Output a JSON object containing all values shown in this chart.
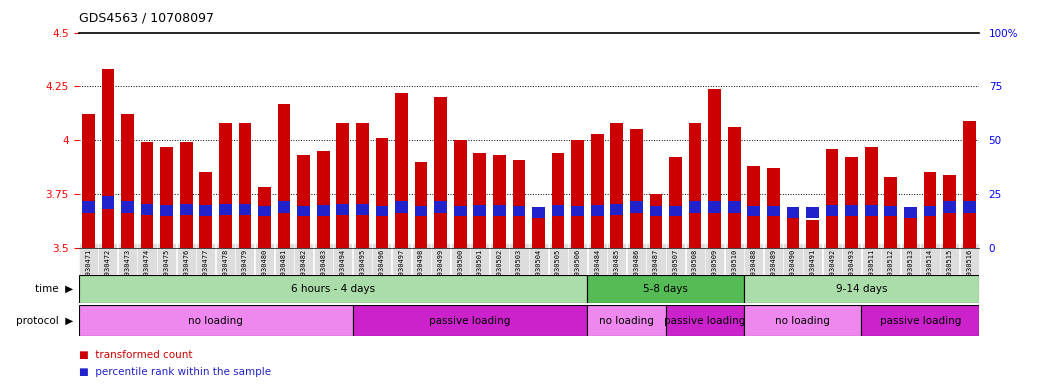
{
  "title": "GDS4563 / 10708097",
  "samples": [
    "GSM930471",
    "GSM930472",
    "GSM930473",
    "GSM930474",
    "GSM930475",
    "GSM930476",
    "GSM930477",
    "GSM930478",
    "GSM930479",
    "GSM930480",
    "GSM930481",
    "GSM930482",
    "GSM930483",
    "GSM930494",
    "GSM930495",
    "GSM930496",
    "GSM930497",
    "GSM930498",
    "GSM930499",
    "GSM930500",
    "GSM930501",
    "GSM930502",
    "GSM930503",
    "GSM930504",
    "GSM930505",
    "GSM930506",
    "GSM930484",
    "GSM930485",
    "GSM930486",
    "GSM930487",
    "GSM930507",
    "GSM930508",
    "GSM930509",
    "GSM930510",
    "GSM930488",
    "GSM930489",
    "GSM930490",
    "GSM930491",
    "GSM930492",
    "GSM930493",
    "GSM930511",
    "GSM930512",
    "GSM930513",
    "GSM930514",
    "GSM930515",
    "GSM930516"
  ],
  "red_values": [
    4.12,
    4.33,
    4.12,
    3.99,
    3.97,
    3.99,
    3.85,
    4.08,
    4.08,
    3.78,
    4.17,
    3.93,
    3.95,
    4.08,
    4.08,
    4.01,
    4.22,
    3.9,
    4.2,
    4.0,
    3.94,
    3.93,
    3.91,
    3.64,
    3.94,
    4.0,
    4.03,
    4.08,
    4.05,
    3.75,
    3.92,
    4.08,
    4.24,
    4.06,
    3.88,
    3.87,
    3.64,
    3.63,
    3.96,
    3.92,
    3.97,
    3.83,
    3.64,
    3.85,
    3.84,
    4.09
  ],
  "blue_bottoms": [
    3.66,
    3.68,
    3.66,
    3.65,
    3.648,
    3.65,
    3.648,
    3.65,
    3.65,
    3.645,
    3.66,
    3.645,
    3.648,
    3.65,
    3.65,
    3.645,
    3.66,
    3.645,
    3.66,
    3.645,
    3.648,
    3.648,
    3.645,
    3.64,
    3.648,
    3.645,
    3.648,
    3.65,
    3.66,
    3.645,
    3.645,
    3.66,
    3.66,
    3.66,
    3.645,
    3.645,
    3.64,
    3.638,
    3.648,
    3.648,
    3.648,
    3.645,
    3.64,
    3.645,
    3.66,
    3.66
  ],
  "blue_heights": [
    0.055,
    0.06,
    0.055,
    0.052,
    0.05,
    0.052,
    0.05,
    0.052,
    0.052,
    0.05,
    0.055,
    0.05,
    0.052,
    0.052,
    0.052,
    0.05,
    0.055,
    0.05,
    0.055,
    0.05,
    0.052,
    0.052,
    0.05,
    0.05,
    0.052,
    0.05,
    0.052,
    0.052,
    0.055,
    0.05,
    0.05,
    0.055,
    0.055,
    0.055,
    0.05,
    0.05,
    0.05,
    0.05,
    0.052,
    0.052,
    0.052,
    0.05,
    0.05,
    0.05,
    0.055,
    0.055
  ],
  "ymin": 3.5,
  "ymax": 4.5,
  "yticks": [
    3.5,
    3.75,
    4.0,
    4.25,
    4.5
  ],
  "ytick_labels": [
    "3.5",
    "3.75",
    "4",
    "4.25",
    "4.5"
  ],
  "grid_lines": [
    3.75,
    4.0,
    4.25
  ],
  "right_yticks": [
    0,
    25,
    50,
    75,
    100
  ],
  "right_ytick_labels": [
    "0",
    "25",
    "50",
    "75",
    "100%"
  ],
  "bar_color": "#cc0000",
  "blue_color": "#2222cc",
  "time_groups": [
    {
      "label": "6 hours - 4 days",
      "start": 0,
      "end": 26,
      "color": "#aaddaa"
    },
    {
      "label": "5-8 days",
      "start": 26,
      "end": 34,
      "color": "#55bb55"
    },
    {
      "label": "9-14 days",
      "start": 34,
      "end": 46,
      "color": "#aaddaa"
    }
  ],
  "protocol_groups": [
    {
      "label": "no loading",
      "start": 0,
      "end": 14,
      "color": "#ee88ee"
    },
    {
      "label": "passive loading",
      "start": 14,
      "end": 26,
      "color": "#cc22cc"
    },
    {
      "label": "no loading",
      "start": 26,
      "end": 30,
      "color": "#ee88ee"
    },
    {
      "label": "passive loading",
      "start": 30,
      "end": 34,
      "color": "#cc22cc"
    },
    {
      "label": "no loading",
      "start": 34,
      "end": 40,
      "color": "#ee88ee"
    },
    {
      "label": "passive loading",
      "start": 40,
      "end": 46,
      "color": "#cc22cc"
    }
  ],
  "legend_red": "transformed count",
  "legend_blue": "percentile rank within the sample"
}
